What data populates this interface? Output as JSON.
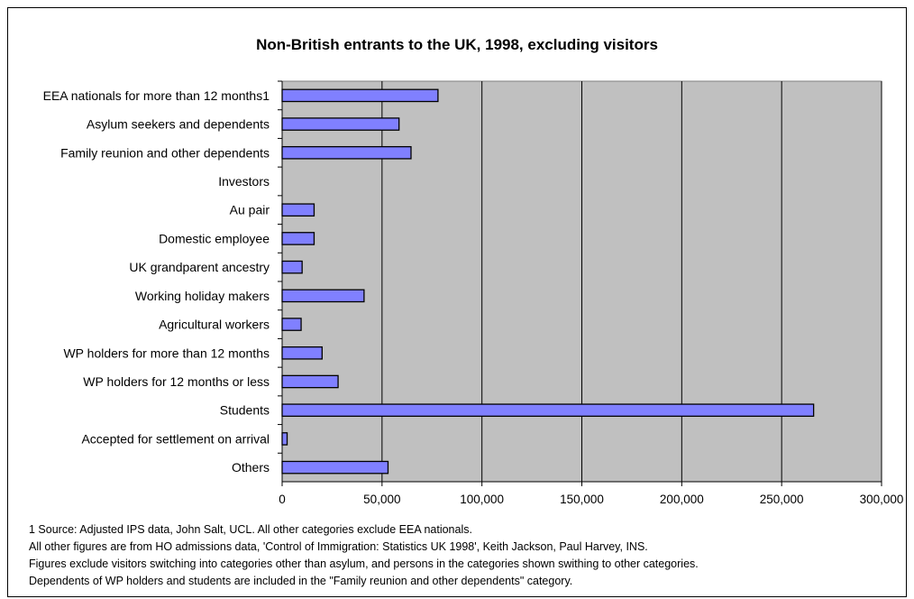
{
  "chart_data": {
    "type": "bar",
    "orientation": "horizontal",
    "title": "Non-British entrants to the UK, 1998, excluding visitors",
    "categories": [
      "EEA nationals for more than 12 months1",
      "Asylum seekers and dependents",
      "Family reunion and other dependents",
      "Investors",
      "Au pair",
      "Domestic employee",
      "UK grandparent ancestry",
      "Working holiday makers",
      "Agricultural workers",
      "WP holders for more than 12 months",
      "WP holders for 12 months or less",
      "Students",
      "Accepted for settlement on arrival",
      "Others"
    ],
    "values": [
      78000,
      58500,
      64500,
      0,
      16000,
      16000,
      10000,
      41000,
      9500,
      20000,
      28000,
      266000,
      2500,
      53000
    ],
    "xlim": [
      0,
      300000
    ],
    "xticks": [
      "0",
      "50,000",
      "100,000",
      "150,000",
      "200,000",
      "250,000",
      "300,000"
    ],
    "xtick_values": [
      0,
      50000,
      100000,
      150000,
      200000,
      250000,
      300000
    ],
    "grid": true,
    "bar_color": "#8080ff",
    "plot_background": "#c0c0c0",
    "xlabel": "",
    "ylabel": ""
  },
  "notes": [
    "1 Source: Adjusted IPS data, John Salt, UCL. All other categories exclude EEA nationals.",
    "All other figures are from HO admissions data, 'Control of Immigration: Statistics UK 1998', Keith Jackson, Paul Harvey, INS.",
    "Figures exclude visitors switching into categories other than asylum, and persons in the categories shown swithing to other categories.",
    "Dependents of WP holders and students are included in the \"Family reunion and other dependents\" category."
  ]
}
